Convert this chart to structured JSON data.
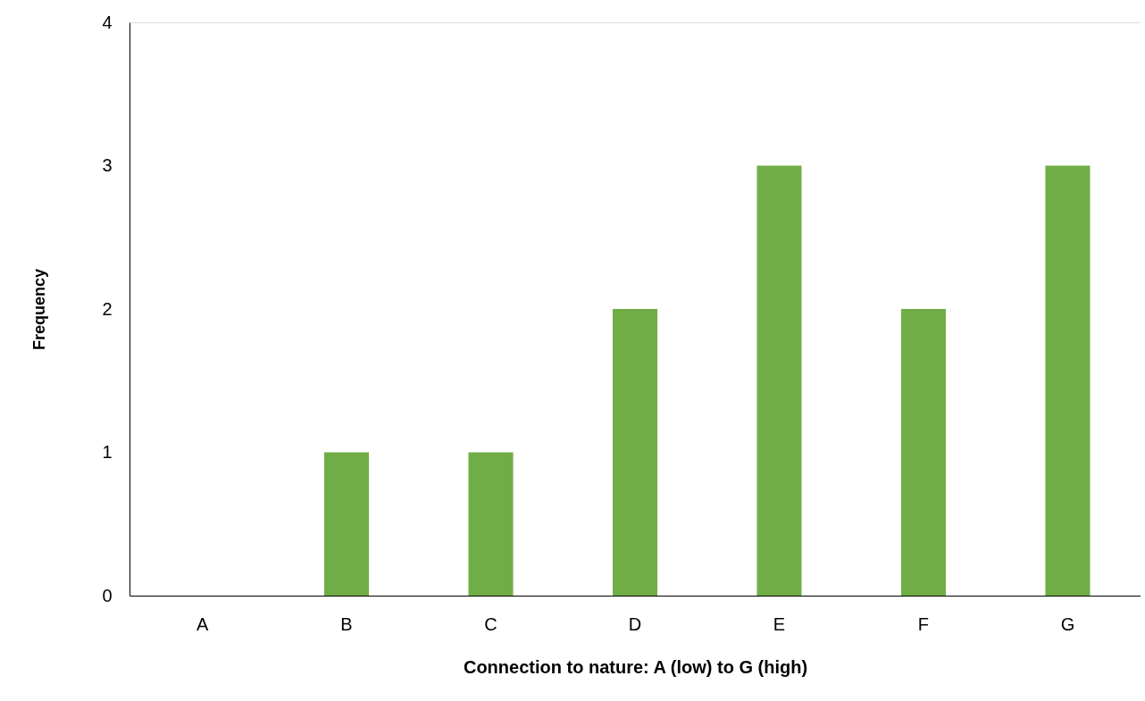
{
  "chart_data": {
    "type": "bar",
    "xlabel": "Connection to nature: A (low) to G (high)",
    "ylabel": "Frequency",
    "categories": [
      "A",
      "B",
      "C",
      "D",
      "E",
      "F",
      "G"
    ],
    "values": [
      0,
      1,
      1,
      2,
      3,
      2,
      3
    ],
    "color": "#70ad47",
    "ylim": [
      0,
      4
    ],
    "yticks": [
      0,
      1,
      2,
      3,
      4
    ],
    "grid": false
  }
}
